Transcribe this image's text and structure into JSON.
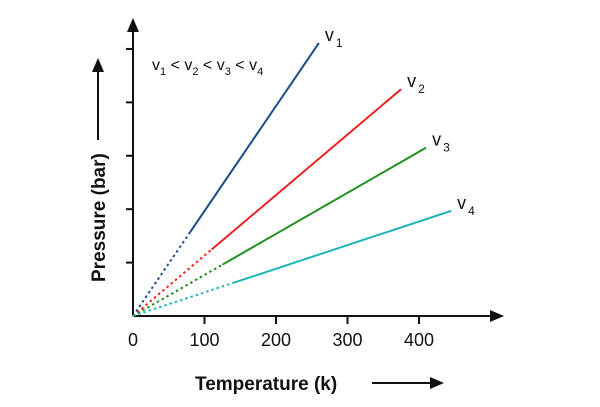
{
  "chart_data": {
    "type": "line",
    "xlabel": "Temperature (k)",
    "ylabel": "Pressure (bar)",
    "xlim": [
      0,
      480
    ],
    "x_ticks": [
      0,
      100,
      200,
      300,
      400
    ],
    "x_tick_labels": [
      "0",
      "100",
      "200",
      "300",
      "400"
    ],
    "y_tick_count": 5,
    "grid": false,
    "annotation": {
      "parts": [
        "v",
        "1",
        " < ",
        "v",
        "2",
        " < ",
        "v",
        "3",
        " < ",
        "v",
        "4"
      ]
    },
    "series": [
      {
        "name": "v1",
        "label_main": "v",
        "label_sub": "1",
        "color": "#1f4e8c",
        "x": [
          0,
          260
        ],
        "dashed_until_x": 80,
        "slope": 1.0
      },
      {
        "name": "v2",
        "label_main": "v",
        "label_sub": "2",
        "color": "#ee2222",
        "x": [
          0,
          375
        ],
        "dashed_until_x": 110,
        "slope": 0.576
      },
      {
        "name": "v3",
        "label_main": "v",
        "label_sub": "3",
        "color": "#1f8f1f",
        "x": [
          0,
          410
        ],
        "dashed_until_x": 125,
        "slope": 0.391
      },
      {
        "name": "v4",
        "label_main": "v",
        "label_sub": "4",
        "color": "#22b5b5",
        "x": [
          0,
          445
        ],
        "dashed_until_x": 140,
        "slope": 0.225
      }
    ]
  }
}
